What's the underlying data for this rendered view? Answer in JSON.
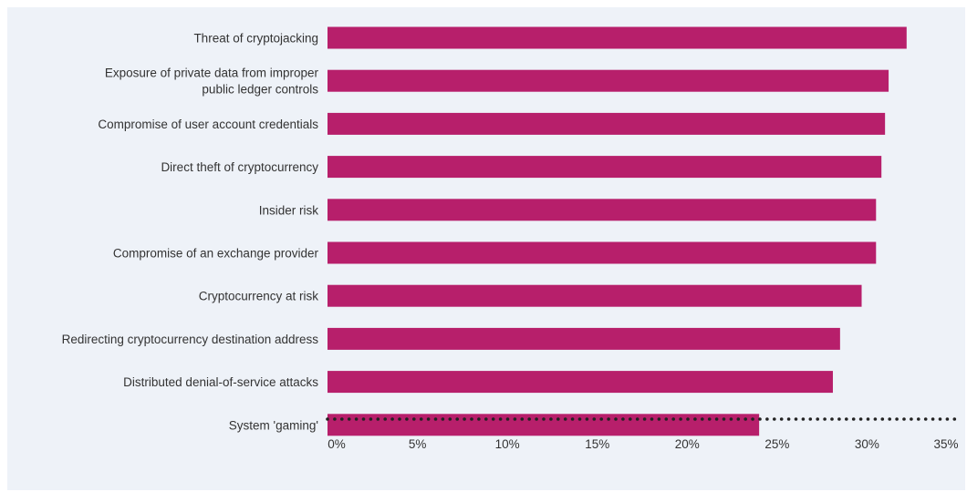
{
  "colors": {
    "bar": "#b71f6b",
    "axis_dots": "#222222",
    "background": "#eef2f8",
    "text": "#333333"
  },
  "chart_data": {
    "type": "bar",
    "orientation": "horizontal",
    "categories": [
      [
        "Threat of cryptojacking"
      ],
      [
        "Exposure of private data from improper",
        "public ledger controls"
      ],
      [
        "Compromise of user account credentials"
      ],
      [
        "Direct theft of cryptocurrency"
      ],
      [
        "Insider risk"
      ],
      [
        "Compromise of an exchange provider"
      ],
      [
        "Cryptocurrency at risk"
      ],
      [
        "Redirecting cryptocurrency destination address"
      ],
      [
        "Distributed denial-of-service attacks"
      ],
      [
        "System 'gaming'"
      ]
    ],
    "values": [
      32.2,
      31.2,
      31.0,
      30.8,
      30.5,
      30.5,
      29.7,
      28.5,
      28.1,
      24.0
    ],
    "x_ticks": [
      "0%",
      "5%",
      "10%",
      "15%",
      "20%",
      "25%",
      "30%",
      "35%"
    ],
    "xlim": [
      0,
      35
    ],
    "grid": false,
    "legend": "none"
  }
}
